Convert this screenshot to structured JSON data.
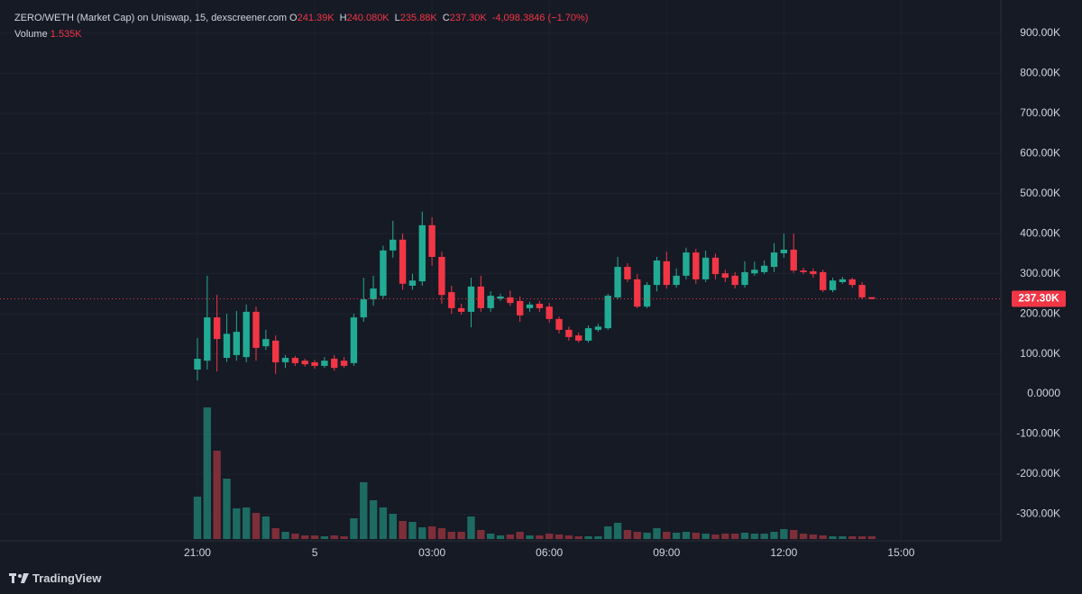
{
  "chart_data": {
    "type": "candlestick",
    "title": "ZERO/WETH (Market Cap) on Uniswap, 15, dexscreener.com",
    "ohlc_keys": {
      "open": "O",
      "high": "H",
      "low": "L",
      "close": "C"
    },
    "last_labels": {
      "open": "241.39K",
      "high": "240.080K",
      "low": "235.88K",
      "close": "237.30K",
      "volume": "1.535K"
    },
    "change_label": "-4,098.3846 (−1.70%)",
    "volume_label": "Volume",
    "up_color": "#22ab94",
    "down_color": "#f23645",
    "volume_up_color": "#1d6b62",
    "volume_down_color": "#7e2e39",
    "open": [
      60750,
      83000,
      191000,
      90000,
      97000,
      92000,
      205000,
      119000,
      133000,
      79000,
      90000,
      83000,
      79000,
      70000,
      88000,
      83000,
      77000,
      191000,
      236000,
      245000,
      358000,
      385000,
      270000,
      281000,
      421000,
      342000,
      254000,
      214000,
      205000,
      268000,
      214000,
      238000,
      241000,
      232000,
      214000,
      225000,
      218000,
      187000,
      160000,
      146000,
      133000,
      160000,
      164000,
      241000,
      317000,
      286000,
      218000,
      272000,
      331000,
      272000,
      295000,
      353000,
      286000,
      340000,
      301000,
      295000,
      272000,
      301000,
      304000,
      317000,
      351000,
      360000,
      308000,
      306000,
      304000,
      259000,
      279000,
      286000,
      272000,
      241390
    ],
    "high": [
      139500,
      295000,
      247000,
      200000,
      207000,
      223000,
      218000,
      160000,
      146000,
      97000,
      95000,
      88000,
      85000,
      92000,
      97000,
      92000,
      200000,
      290000,
      295000,
      370000,
      432000,
      400000,
      300000,
      455000,
      441000,
      355000,
      270000,
      225000,
      290000,
      295000,
      256000,
      250000,
      258000,
      243000,
      230000,
      232000,
      227000,
      193000,
      168000,
      153000,
      171000,
      175000,
      250000,
      342000,
      326000,
      299000,
      279000,
      342000,
      355000,
      313000,
      365000,
      362000,
      358000,
      350000,
      310000,
      304000,
      331000,
      330000,
      333000,
      376000,
      400000,
      400000,
      315000,
      313000,
      310000,
      290000,
      292000,
      290000,
      279000,
      240080
    ],
    "low": [
      33750,
      61000,
      56000,
      80000,
      83000,
      79000,
      83000,
      110000,
      50000,
      65000,
      70000,
      68000,
      63000,
      65000,
      58000,
      65000,
      70000,
      180000,
      220000,
      238000,
      340000,
      260000,
      260000,
      270000,
      320000,
      225000,
      200000,
      198000,
      166000,
      205000,
      205000,
      232000,
      220000,
      180000,
      205000,
      205000,
      178000,
      151000,
      133000,
      128000,
      128000,
      155000,
      160000,
      236000,
      279000,
      214000,
      214000,
      256000,
      263000,
      265000,
      286000,
      275000,
      279000,
      286000,
      279000,
      263000,
      265000,
      295000,
      299000,
      304000,
      340000,
      302000,
      299000,
      290000,
      254000,
      254000,
      275000,
      265000,
      236000,
      235880
    ],
    "close": [
      87750,
      191000,
      137000,
      150000,
      155000,
      205000,
      115000,
      137000,
      79000,
      90000,
      77000,
      74000,
      70000,
      83000,
      65000,
      70000,
      191000,
      236000,
      263000,
      358000,
      385000,
      275000,
      283000,
      421000,
      342000,
      247000,
      214000,
      205000,
      268000,
      214000,
      245000,
      243000,
      227000,
      196000,
      223000,
      214000,
      187000,
      160000,
      142000,
      133000,
      164000,
      168000,
      245000,
      317000,
      286000,
      218000,
      272000,
      333000,
      272000,
      295000,
      353000,
      286000,
      340000,
      299000,
      290000,
      272000,
      304000,
      310000,
      320000,
      353000,
      360000,
      308000,
      304000,
      299000,
      259000,
      283000,
      286000,
      272000,
      241000,
      237300
    ],
    "volume": [
      23500,
      73000,
      49000,
      33500,
      17000,
      17500,
      14500,
      12500,
      6000,
      4000,
      3000,
      2000,
      2000,
      1500,
      2000,
      1500,
      11500,
      31500,
      21500,
      17500,
      14000,
      10000,
      9500,
      6500,
      7000,
      6000,
      4000,
      4000,
      12500,
      5000,
      3000,
      2000,
      2500,
      4000,
      2000,
      2000,
      3000,
      2500,
      2000,
      1500,
      1500,
      1500,
      7000,
      9000,
      5000,
      4000,
      3500,
      6000,
      4000,
      3500,
      4000,
      3500,
      3000,
      2500,
      3000,
      3000,
      3500,
      3000,
      3000,
      4000,
      5500,
      5000,
      3000,
      2500,
      2000,
      1500,
      1500,
      1500,
      1500,
      1535
    ],
    "xlim": [
      -20.2,
      82.2
    ],
    "xticks": [
      {
        "value": 0,
        "label": "21:00"
      },
      {
        "value": 12,
        "label": "5"
      },
      {
        "value": 24,
        "label": "03:00"
      },
      {
        "value": 36,
        "label": "06:00"
      },
      {
        "value": 48,
        "label": "09:00"
      },
      {
        "value": 60,
        "label": "12:00"
      },
      {
        "value": 72,
        "label": "15:00"
      }
    ],
    "ylim": [
      -362000,
      983000
    ],
    "yticks": [
      {
        "value": 900000,
        "label": "900.00K"
      },
      {
        "value": 800000,
        "label": "800.00K"
      },
      {
        "value": 700000,
        "label": "700.00K"
      },
      {
        "value": 600000,
        "label": "600.00K"
      },
      {
        "value": 500000,
        "label": "500.00K"
      },
      {
        "value": 400000,
        "label": "400.00K"
      },
      {
        "value": 300000,
        "label": "300.00K"
      },
      {
        "value": 200000,
        "label": "200.00K"
      },
      {
        "value": 100000,
        "label": "100.00K"
      },
      {
        "value": 0,
        "label": "0.0000"
      },
      {
        "value": -100000,
        "label": "-100.00K"
      },
      {
        "value": -200000,
        "label": "-200.00K"
      },
      {
        "value": -300000,
        "label": "-300.00K"
      }
    ],
    "volume_ylim": [
      0,
      80000
    ],
    "grid": true
  },
  "brand": "TradingView"
}
